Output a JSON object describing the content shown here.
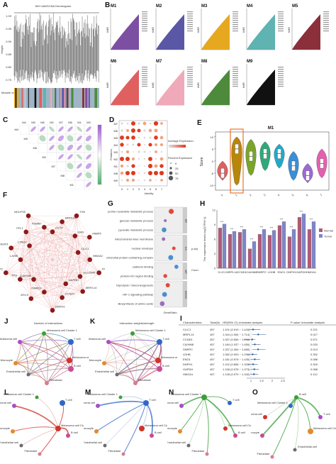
{
  "panels": {
    "A": {
      "label": "A",
      "title": "WH hdWGCNA Dendrogram",
      "y_label": "Height",
      "module_bar_label": "Module colors",
      "y_ticks": [
        "1.00",
        "0.95",
        "0.90",
        "0.85",
        "0.80",
        "0.75"
      ]
    },
    "B": {
      "label": "B",
      "modules": [
        {
          "name": "M1",
          "color": "#7d4fa3"
        },
        {
          "name": "M2",
          "color": "#5a57a6"
        },
        {
          "name": "M3",
          "color": "#e6a81f"
        },
        {
          "name": "M4",
          "color": "#5fb3b0"
        },
        {
          "name": "M5",
          "color": "#8b2f3b"
        },
        {
          "name": "M6",
          "color": "#e06060"
        },
        {
          "name": "M7",
          "color": "#f0a9b9"
        },
        {
          "name": "M8",
          "color": "#4e8a3c"
        },
        {
          "name": "M9",
          "color": "#111111"
        }
      ],
      "y_label": "kME"
    },
    "C": {
      "label": "C",
      "modules": [
        "M4",
        "M5",
        "M6",
        "M2",
        "M7",
        "M8",
        "M1",
        "M3"
      ]
    },
    "D": {
      "label": "D",
      "y_label": "Features",
      "x_label": "Identity",
      "legend_title_1": "Average Expression",
      "legend_title_2": "Percent Expressed",
      "legend_ticks": [
        "0",
        "25",
        "50",
        "75"
      ],
      "features": [
        "M7",
        "M6",
        "M5",
        "M4",
        "M3",
        "M2",
        "M1",
        "M8",
        "M9"
      ],
      "identities": [
        "0",
        "1",
        "2",
        "3",
        "4",
        "5",
        "6",
        "7"
      ]
    },
    "E": {
      "label": "E",
      "title": "M1",
      "y_label": "Score",
      "x_ticks": [
        "0",
        "1",
        "2",
        "3",
        "4",
        "5",
        "6",
        "7"
      ],
      "y_ticks": [
        "10",
        "5",
        "0",
        "-5",
        "-10"
      ]
    },
    "F": {
      "label": "F",
      "genes": [
        "CCT3",
        "MRPL14",
        "TXN",
        "RAN",
        "FABP5",
        "CLIC1",
        "HMGA1",
        "PFN1",
        "SLC25A5",
        "MRPL14",
        "GAPDH",
        "CCND1",
        "DNPH1",
        "TIMM13",
        "MYL6",
        "CA/HM8",
        "TPI1",
        "SNRPC",
        "LDHB",
        "RASIP1",
        "CTAG2",
        "PFL1",
        "NDUFS5",
        "PSMB7"
      ]
    },
    "G": {
      "label": "G",
      "x_label": "GeneRatio",
      "terms": [
        "purine nucleotide metabolic process",
        "glucose metabolic process",
        "pyruvate metabolic process",
        "mitochondrial inner membrane",
        "nuclear envelope",
        "mitochondrial protein-containing complex",
        "cadherin binding",
        "protein-rich region binding",
        "Glycolysis / Gluconeogenesis",
        "HIF-1 signaling pathway",
        "Biosynthesis of amino acids"
      ],
      "groups": [
        "BP",
        "CC",
        "MF",
        "KEGG"
      ],
      "legend_title_1": "p.adj",
      "legend_title_2": "Counts"
    },
    "H": {
      "label": "H",
      "y_label": "The expression levels\nlog2(TPM+1)",
      "genes": [
        "CLIC1",
        "MRPL14",
        "CCND1",
        "CA/HM8",
        "SNRPC",
        "LDHB",
        "ENO1",
        "DNPH1",
        "GAPDH",
        "HMGA1"
      ],
      "legend": [
        {
          "name": "Normal",
          "color": "#b05a78"
        },
        {
          "name": "Tumor",
          "color": "#7f86c9"
        }
      ],
      "sig": "***"
    },
    "I": {
      "label": "I",
      "header": [
        "Characteristics",
        "Total(N)",
        "HR(95% CI) Univariate analysis",
        "P value Univariate analysis"
      ],
      "rows": [
        [
          "CLIC1",
          "457",
          "1.101 (0.919 ~ 1.443)",
          "0.221"
        ],
        [
          "MRPL14",
          "457",
          "1.344 (1.054 ~ 1.714)",
          "0.017"
        ],
        [
          "CCND1",
          "457",
          "1.057 (0.656 ~ 1.208)",
          "0.571"
        ],
        [
          "CA/HM8",
          "457",
          "1.184 (1.037 ~ 1.450)",
          "0.020"
        ],
        [
          "SNRPC",
          "457",
          "1.337 (1.064 ~ 1.680)",
          "0.013"
        ],
        [
          "LDHB",
          "457",
          "1.082 (0.903 ~ 1.298)",
          "0.392"
        ],
        [
          "ENO1",
          "457",
          "1.181 (0.976 ~ 1.430)",
          "0.088"
        ],
        [
          "DNPH1",
          "457",
          "1.102 (0.856 ~ 1.322)",
          "0.300"
        ],
        [
          "GAPDH",
          "457",
          "1.158 (0.978 ~ 1.373)",
          "0.088"
        ],
        [
          "HMGA1",
          "457",
          "1.138 (0.970 ~ 1.342)",
          "0.112"
        ]
      ],
      "axis_ticks": [
        "1",
        "1.5",
        "2",
        "2.5"
      ]
    },
    "J": {
      "label": "J",
      "title": "Number of interactions",
      "nodes": [
        "Melanoma cell Cluster 1",
        "T cell",
        "Other Melanoma cell",
        "Melanoma cell Cluster 0",
        "Monocyte",
        "B cell",
        "Endothelial cell",
        "Fibroblast"
      ]
    },
    "K": {
      "label": "K",
      "title": "Interaction weights/strength",
      "nodes": [
        "Melanoma cell Cluster 1",
        "T cell",
        "Other Melanoma cell",
        "Melanoma cell Cluster 0",
        "Monocyte",
        "B cell",
        "Endothelial cell",
        "Fibroblast"
      ]
    },
    "L": {
      "label": "L",
      "nodes": [
        "Melanoma cell Cluster 1",
        "T cell",
        "Other Melanoma cell",
        "Melanoma cell Cluster 0",
        "Monocyte",
        "B cell",
        "Endothelial cell",
        "Fibroblast"
      ]
    },
    "M": {
      "label": "M",
      "nodes": [
        "Melanoma cell Cluster 1",
        "T cell",
        "Other Melanoma cell",
        "Melanoma cell Cluster 0",
        "Monocyte",
        "B cell",
        "Endothelial cell",
        "Fibroblast"
      ]
    },
    "N": {
      "label": "N",
      "nodes": [
        "Melanoma cell Cluster 1",
        "T cell",
        "Other Melanoma cell",
        "Melanoma cell Cluster 0",
        "Monocyte",
        "B cell",
        "Endothelial cell",
        "Fibroblast"
      ]
    },
    "O": {
      "label": "O",
      "nodes": [
        "B cell",
        "Melanoma cell Cluster 1",
        "T cell",
        "Other Melanoma cell",
        "Melanoma cell Cluster 0",
        "Monocyte",
        "Endothelial cell",
        "Fibroblast"
      ]
    }
  },
  "chart_data": [
    {
      "type": "bar",
      "panel": "H",
      "categories": [
        "CLIC1",
        "MRPL14",
        "CCND1",
        "CA/HM8",
        "SNRPC",
        "LDHB",
        "ENO1",
        "DNPH1",
        "GAPDH",
        "HMGA1"
      ],
      "series": [
        {
          "name": "Normal",
          "values": [
            8.3,
            7.0,
            7.4,
            4.0,
            7.0,
            6.8,
            8.8,
            6.5,
            10.5,
            8.0
          ]
        },
        {
          "name": "Tumor",
          "values": [
            9.1,
            7.6,
            8.0,
            5.5,
            8.0,
            7.8,
            9.6,
            8.0,
            11.2,
            9.6
          ]
        }
      ],
      "ylim": [
        0,
        12
      ]
    },
    {
      "type": "violin",
      "panel": "E",
      "title": "M1",
      "categories": [
        "0",
        "1",
        "2",
        "3",
        "4",
        "5",
        "6",
        "7"
      ],
      "medians": [
        -5,
        5,
        2,
        3,
        3,
        -2,
        -6,
        -1
      ],
      "ylim": [
        -12,
        12
      ]
    }
  ]
}
